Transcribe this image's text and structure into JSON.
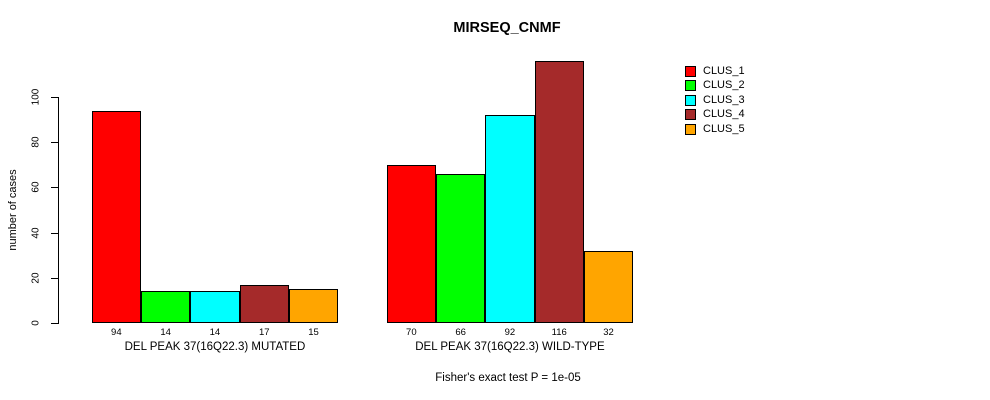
{
  "chart_data": {
    "type": "bar",
    "title": "MIRSEQ_CNMF",
    "ylabel": "number of cases",
    "xlabel": "",
    "caption": "Fisher's exact test P = 1e-05",
    "y_ticks": [
      0,
      20,
      40,
      60,
      80,
      100
    ],
    "ylim": [
      0,
      120
    ],
    "grid": false,
    "legend_position": "right",
    "bar_value_labels_shown": true,
    "categories": [
      "DEL PEAK 37(16Q22.3) MUTATED",
      "DEL PEAK 37(16Q22.3) WILD-TYPE"
    ],
    "series": [
      {
        "name": "CLUS_1",
        "color": "#FF0000",
        "values": [
          94,
          70
        ]
      },
      {
        "name": "CLUS_2",
        "color": "#00FF00",
        "values": [
          14,
          66
        ]
      },
      {
        "name": "CLUS_3",
        "color": "#00FFFF",
        "values": [
          14,
          92
        ]
      },
      {
        "name": "CLUS_4",
        "color": "#A52A2A",
        "values": [
          17,
          116
        ]
      },
      {
        "name": "CLUS_5",
        "color": "#FFA500",
        "values": [
          15,
          32
        ]
      }
    ]
  }
}
